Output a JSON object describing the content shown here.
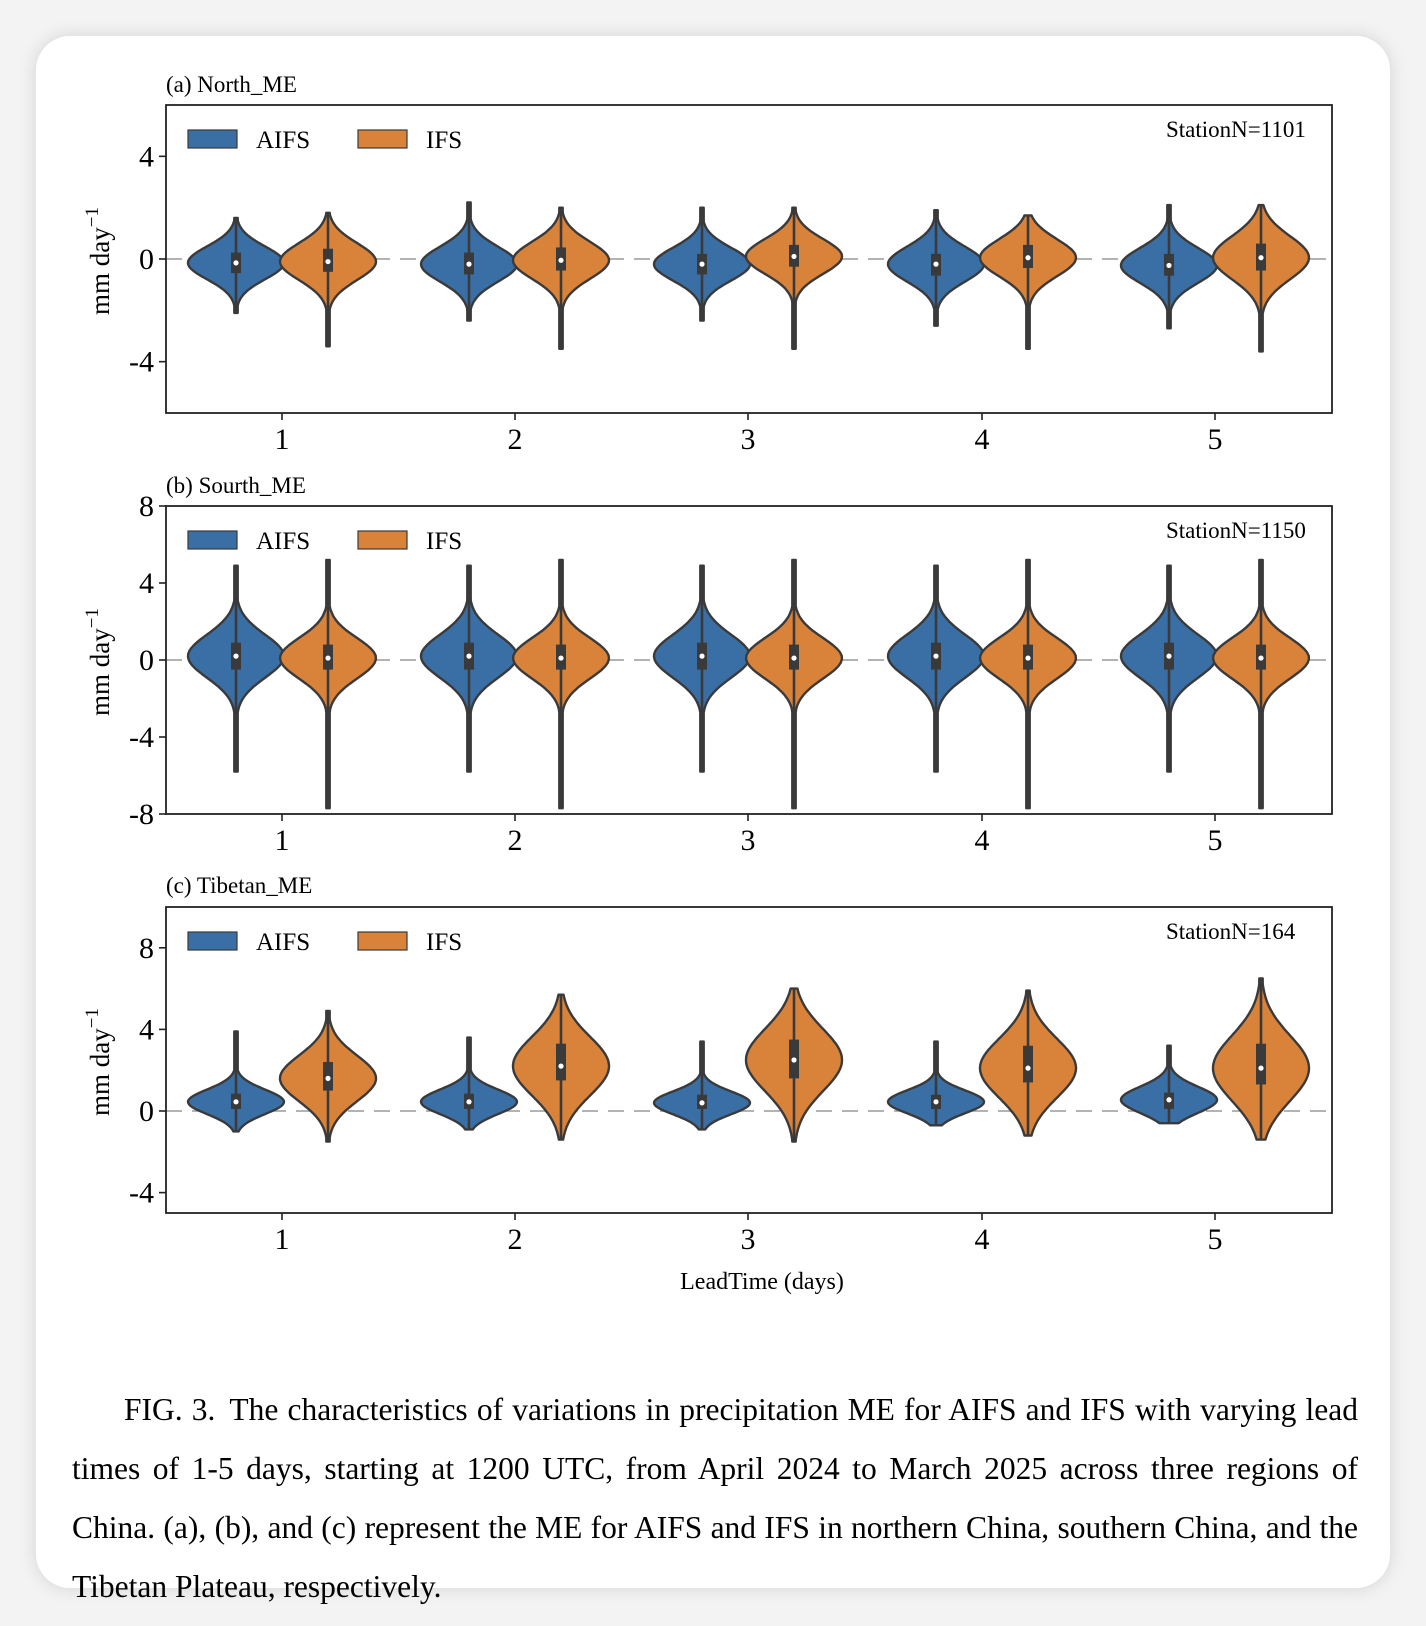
{
  "figure_label": "FIG. 3.",
  "caption": "The characteristics of variations in precipitation ME for AIFS and IFS with varying lead times of 1-5 days, starting at 1200 UTC, from April 2024 to March 2025 across three regions of China. (a), (b), and (c) represent the ME for AIFS and IFS in northern China, southern China, and the Tibetan Plateau, respectively.",
  "colors": {
    "AIFS": "#3a6fa6",
    "IFS": "#d9833a",
    "outline": "#3a3a3a"
  },
  "chart_data": [
    {
      "type": "violin",
      "title": "(a) North_ME",
      "ylabel": "mm day",
      "ylabel_sup": "−1",
      "xlabel": "",
      "ylim": [
        -6,
        6
      ],
      "yticks": [
        4,
        0,
        -4
      ],
      "ytick_labels": [
        "4",
        "0",
        "-4"
      ],
      "categories": [
        "1",
        "2",
        "3",
        "4",
        "5"
      ],
      "legend": [
        "AIFS",
        "IFS"
      ],
      "legend_position": "top-left",
      "annotation": "StationN=1101",
      "reference_line": 0,
      "series": [
        {
          "name": "AIFS",
          "min": [
            -2.1,
            -2.4,
            -2.4,
            -2.6,
            -2.7
          ],
          "q1": [
            -0.55,
            -0.6,
            -0.6,
            -0.65,
            -0.65
          ],
          "median": [
            -0.15,
            -0.2,
            -0.2,
            -0.2,
            -0.25
          ],
          "q3": [
            0.25,
            0.25,
            0.2,
            0.2,
            0.2
          ],
          "max": [
            1.6,
            2.2,
            2.0,
            1.9,
            2.1
          ]
        },
        {
          "name": "IFS",
          "min": [
            -3.4,
            -3.5,
            -3.5,
            -3.5,
            -3.6
          ],
          "q1": [
            -0.5,
            -0.45,
            -0.3,
            -0.35,
            -0.45
          ],
          "median": [
            -0.1,
            -0.05,
            0.1,
            0.05,
            0.05
          ],
          "q3": [
            0.4,
            0.45,
            0.55,
            0.55,
            0.6
          ],
          "max": [
            1.8,
            2.0,
            2.0,
            1.7,
            2.1
          ]
        }
      ]
    },
    {
      "type": "violin",
      "title": "(b) Sourth_ME",
      "ylabel": "mm day",
      "ylabel_sup": "−1",
      "xlabel": "",
      "ylim": [
        -8,
        8
      ],
      "yticks": [
        8,
        4,
        0,
        -4,
        -8
      ],
      "ytick_labels": [
        "8",
        "4",
        "0",
        "-4",
        "-8"
      ],
      "categories": [
        "1",
        "2",
        "3",
        "4",
        "5"
      ],
      "legend": [
        "AIFS",
        "IFS"
      ],
      "legend_position": "top-left",
      "annotation": "StationN=1150",
      "reference_line": 0,
      "series": [
        {
          "name": "AIFS",
          "min": [
            -5.8,
            -5.8,
            -5.8,
            -5.8,
            -5.8
          ],
          "q1": [
            -0.5,
            -0.5,
            -0.5,
            -0.5,
            -0.5
          ],
          "median": [
            0.2,
            0.2,
            0.2,
            0.2,
            0.2
          ],
          "q3": [
            0.9,
            0.9,
            0.9,
            0.9,
            0.9
          ],
          "max": [
            4.9,
            4.9,
            4.9,
            4.9,
            4.9
          ]
        },
        {
          "name": "IFS",
          "min": [
            -7.7,
            -7.7,
            -7.7,
            -7.7,
            -7.7
          ],
          "q1": [
            -0.5,
            -0.5,
            -0.5,
            -0.5,
            -0.5
          ],
          "median": [
            0.1,
            0.1,
            0.1,
            0.1,
            0.1
          ],
          "q3": [
            0.8,
            0.8,
            0.8,
            0.8,
            0.8
          ],
          "max": [
            5.2,
            5.2,
            5.2,
            5.2,
            5.2
          ]
        }
      ]
    },
    {
      "type": "violin",
      "title": "(c) Tibetan_ME",
      "ylabel": "mm day",
      "ylabel_sup": "−1",
      "xlabel": "LeadTime (days)",
      "ylim": [
        -5,
        10
      ],
      "yticks": [
        8,
        4,
        0,
        -4
      ],
      "ytick_labels": [
        "8",
        "4",
        "0",
        "-4"
      ],
      "categories": [
        "1",
        "2",
        "3",
        "4",
        "5"
      ],
      "legend": [
        "AIFS",
        "IFS"
      ],
      "legend_position": "top-left",
      "annotation": "StationN=164",
      "reference_line": 0,
      "series": [
        {
          "name": "AIFS",
          "min": [
            -1.0,
            -0.9,
            -0.9,
            -0.7,
            -0.6
          ],
          "q1": [
            0.1,
            0.1,
            0.1,
            0.1,
            0.1
          ],
          "median": [
            0.45,
            0.45,
            0.4,
            0.45,
            0.55
          ],
          "q3": [
            0.85,
            0.85,
            0.8,
            0.8,
            0.9
          ],
          "max": [
            3.9,
            3.6,
            3.4,
            3.4,
            3.2
          ]
        },
        {
          "name": "IFS",
          "min": [
            -1.5,
            -1.4,
            -1.5,
            -1.2,
            -1.4
          ],
          "q1": [
            1.0,
            1.5,
            1.6,
            1.4,
            1.3
          ],
          "median": [
            1.6,
            2.2,
            2.5,
            2.1,
            2.1
          ],
          "q3": [
            2.4,
            3.3,
            3.5,
            3.2,
            3.3
          ],
          "max": [
            4.9,
            5.7,
            6.0,
            5.9,
            6.5
          ]
        }
      ]
    }
  ]
}
